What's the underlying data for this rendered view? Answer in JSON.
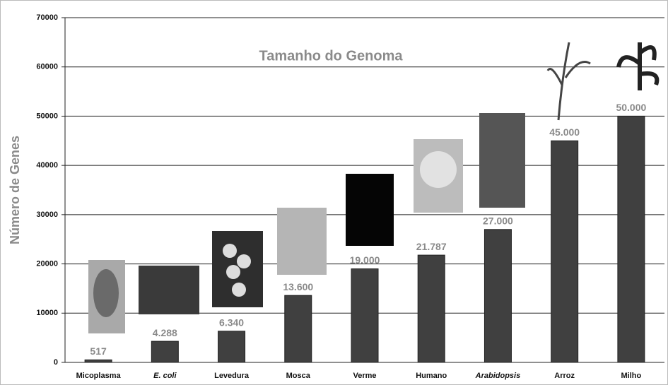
{
  "chart_data": {
    "type": "bar",
    "title": "Tamanho do Genoma",
    "y_label": "Número de Genes",
    "categories": [
      "Micoplasma",
      "E. coli",
      "Levedura",
      "Mosca",
      "Verme",
      "Humano",
      "Arabidopsis",
      "Arroz",
      "Milho"
    ],
    "values": [
      517,
      4288,
      6340,
      13600,
      19000,
      21787,
      27000,
      45000,
      50000
    ],
    "value_labels": [
      "517",
      "4.288",
      "6.340",
      "13.600",
      "19.000",
      "21.787",
      "27.000",
      "45.000",
      "50.000"
    ],
    "color": "#404040",
    "ylim": [
      0,
      70000
    ],
    "yticks": [
      0,
      10000,
      20000,
      30000,
      40000,
      50000,
      60000,
      70000
    ],
    "grid": true
  }
}
